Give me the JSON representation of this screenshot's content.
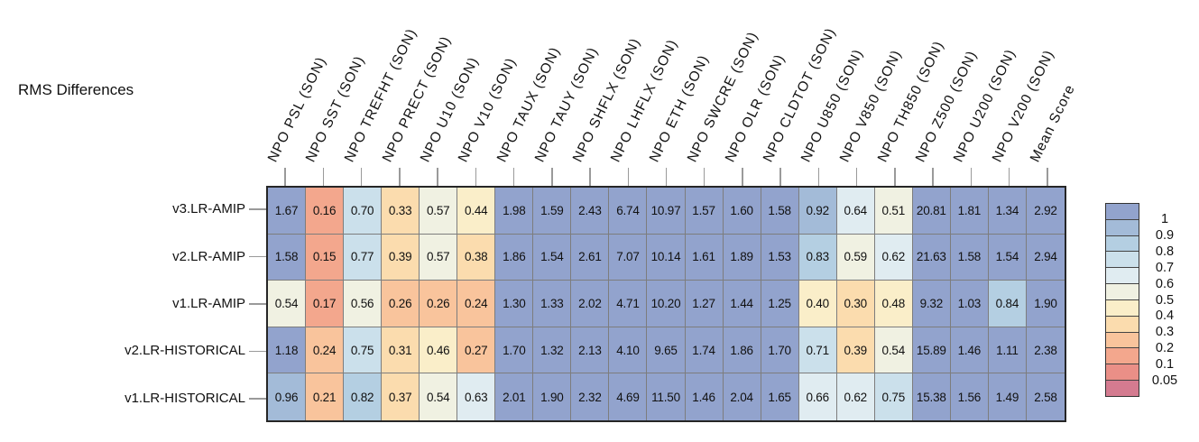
{
  "title": "RMS Differences",
  "chart_data": {
    "type": "heatmap",
    "title": "RMS Differences",
    "legend_position": "right",
    "rows": [
      "v3.LR-AMIP",
      "v2.LR-AMIP",
      "v1.LR-AMIP",
      "v2.LR-HISTORICAL",
      "v1.LR-HISTORICAL"
    ],
    "columns": [
      "NPO PSL (SON)",
      "NPO SST (SON)",
      "NPO TREFHT (SON)",
      "NPO PRECT (SON)",
      "NPO U10 (SON)",
      "NPO V10 (SON)",
      "NPO TAUX (SON)",
      "NPO TAUY (SON)",
      "NPO SHFLX (SON)",
      "NPO LHFLX (SON)",
      "NPO ETH (SON)",
      "NPO SWCRE (SON)",
      "NPO OLR (SON)",
      "NPO CLDTOT (SON)",
      "NPO U850 (SON)",
      "NPO V850 (SON)",
      "NPO TH850 (SON)",
      "NPO Z500 (SON)",
      "NPO U200 (SON)",
      "NPO V200 (SON)",
      "Mean Score"
    ],
    "values": [
      [
        "1.67",
        "0.16",
        "0.70",
        "0.33",
        "0.57",
        "0.44",
        "1.98",
        "1.59",
        "2.43",
        "6.74",
        "10.97",
        "1.57",
        "1.60",
        "1.58",
        "0.92",
        "0.64",
        "0.51",
        "20.81",
        "1.81",
        "1.34",
        "2.92"
      ],
      [
        "1.58",
        "0.15",
        "0.77",
        "0.39",
        "0.57",
        "0.38",
        "1.86",
        "1.54",
        "2.61",
        "7.07",
        "10.14",
        "1.61",
        "1.89",
        "1.53",
        "0.83",
        "0.59",
        "0.62",
        "21.63",
        "1.58",
        "1.54",
        "2.94"
      ],
      [
        "0.54",
        "0.17",
        "0.56",
        "0.26",
        "0.26",
        "0.24",
        "1.30",
        "1.33",
        "2.02",
        "4.71",
        "10.20",
        "1.27",
        "1.44",
        "1.25",
        "0.40",
        "0.30",
        "0.48",
        "9.32",
        "1.03",
        "0.84",
        "1.90"
      ],
      [
        "1.18",
        "0.24",
        "0.75",
        "0.31",
        "0.46",
        "0.27",
        "1.70",
        "1.32",
        "2.13",
        "4.10",
        "9.65",
        "1.74",
        "1.86",
        "1.70",
        "0.71",
        "0.39",
        "0.54",
        "15.89",
        "1.46",
        "1.11",
        "2.38"
      ],
      [
        "0.96",
        "0.21",
        "0.82",
        "0.37",
        "0.54",
        "0.63",
        "2.01",
        "1.90",
        "2.32",
        "4.69",
        "11.50",
        "1.46",
        "2.04",
        "1.65",
        "0.66",
        "0.62",
        "0.75",
        "15.38",
        "1.56",
        "1.49",
        "2.58"
      ]
    ],
    "color_scale": {
      "thresholds": [
        0.05,
        0.1,
        0.2,
        0.3,
        0.4,
        0.5,
        0.6,
        0.7,
        0.8,
        0.9,
        1
      ],
      "colors_low_to_high": [
        "#D47B90",
        "#EA8F87",
        "#F3A78D",
        "#F9C49C",
        "#FBDCAE",
        "#FAEEC9",
        "#F0F1E2",
        "#E0ECF1",
        "#CBE0EB",
        "#B4CFE2",
        "#A3BBD8",
        "#92A3CD"
      ],
      "legend_labels_top_to_bottom": [
        "1",
        "0.9",
        "0.8",
        "0.7",
        "0.6",
        "0.5",
        "0.4",
        "0.3",
        "0.2",
        "0.1",
        "0.05"
      ]
    }
  }
}
